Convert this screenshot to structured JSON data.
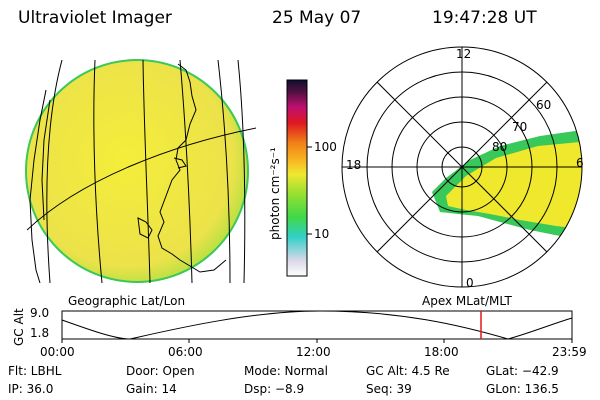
{
  "header": {
    "instrument": "Ultraviolet Imager",
    "date": "25 May 07",
    "time": "19:47:28 UT"
  },
  "colorbar": {
    "unit_label": "photon cm⁻²s⁻¹",
    "ticks": [
      "100",
      "10"
    ]
  },
  "polar": {
    "mlt_labels": [
      "12",
      "18",
      "6",
      "0"
    ],
    "lat_labels": [
      "60",
      "70",
      "80"
    ]
  },
  "timeline": {
    "left_title": "Geographic Lat/Lon",
    "right_title": "Apex MLat/MLT",
    "axis_label": "GC Alt",
    "y_ticks": [
      "9.0",
      "1.8"
    ],
    "x_ticks": [
      "00:00",
      "06:00",
      "12:00",
      "18:00",
      "23:59"
    ],
    "marker_time": "19:47"
  },
  "status": {
    "filter": "Flt: LBHL",
    "door": "Door: Open",
    "mode": "Mode: Normal",
    "gc_alt": "GC Alt: 4.5 Re",
    "glat": "GLat: −42.9",
    "ip": "IP: 36.0",
    "gain": "Gain: 14",
    "dsp": "Dsp:    −8.9",
    "seq": "Seq: 39",
    "glon": "GLon: 136.5"
  },
  "colors": {
    "image_fill": "#f0e82c",
    "image_edge": "#39c85a",
    "marker": "#e01818"
  }
}
